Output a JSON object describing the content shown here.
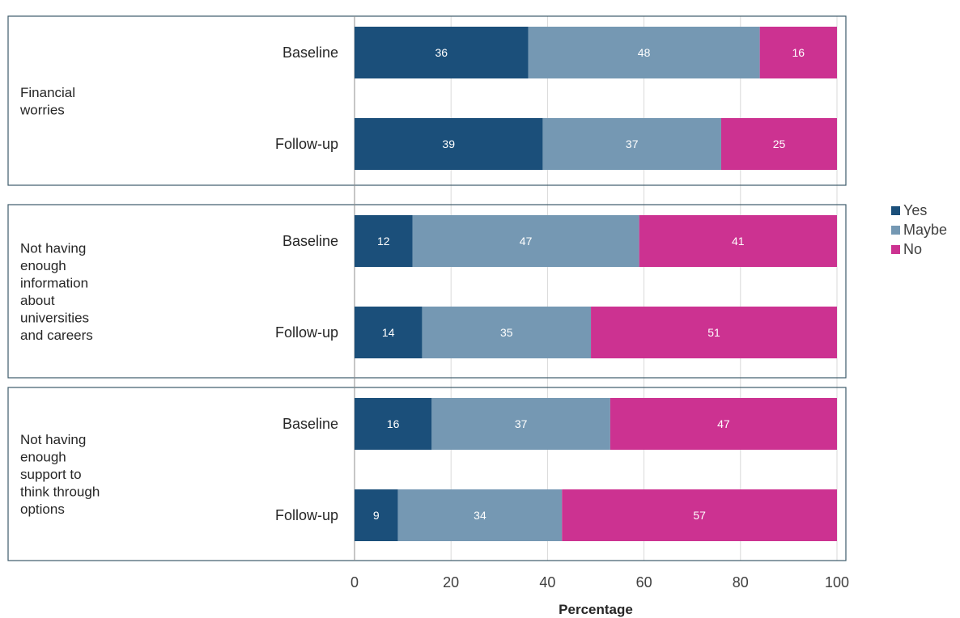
{
  "chart_data": {
    "type": "bar",
    "orientation": "horizontal",
    "stacked": true,
    "title": "",
    "xlabel": "Percentage",
    "ylabel": "",
    "xlim": [
      0,
      100
    ],
    "xticks": [
      0,
      20,
      40,
      60,
      80,
      100
    ],
    "grid": true,
    "legend_position": "right",
    "series": [
      {
        "name": "Yes",
        "color": "#1b4f7a"
      },
      {
        "name": "Maybe",
        "color": "#7598b3"
      },
      {
        "name": "No",
        "color": "#cc3291"
      }
    ],
    "groups": [
      {
        "label": [
          "Financial",
          "worries"
        ],
        "bars": [
          {
            "label": "Baseline",
            "values": [
              36,
              48,
              16
            ]
          },
          {
            "label": "Follow-up",
            "values": [
              39,
              37,
              25
            ]
          }
        ]
      },
      {
        "label": [
          "Not having",
          "enough",
          "information",
          "about",
          "universities",
          "and careers"
        ],
        "bars": [
          {
            "label": "Baseline",
            "values": [
              12,
              47,
              41
            ]
          },
          {
            "label": "Follow-up",
            "values": [
              14,
              35,
              51
            ]
          }
        ]
      },
      {
        "label": [
          "Not having",
          "enough",
          "support to",
          "think through",
          "options"
        ],
        "bars": [
          {
            "label": "Baseline",
            "values": [
              16,
              37,
              47
            ]
          },
          {
            "label": "Follow-up",
            "values": [
              9,
              34,
              57
            ]
          }
        ]
      }
    ]
  }
}
